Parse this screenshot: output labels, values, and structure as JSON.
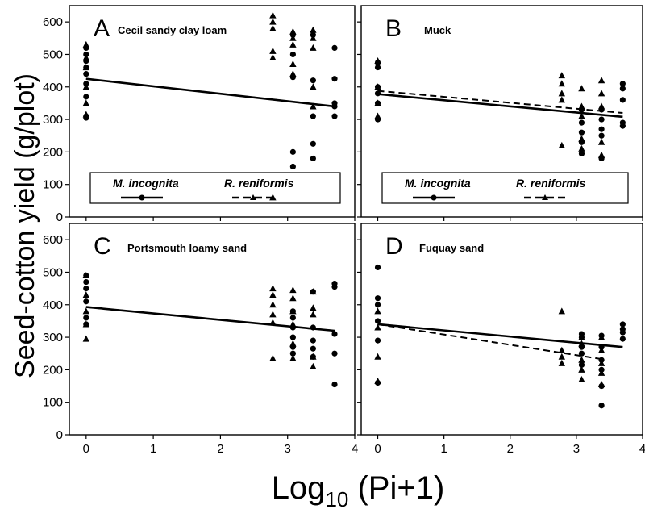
{
  "chart_data": {
    "type": "scatter",
    "ylabel": "Seed-cotton yield (g/plot)",
    "xlabel": {
      "main": "Log",
      "sub": "10",
      "rest": " (Pi+1)"
    },
    "xlim": [
      -0.25,
      4.0
    ],
    "ylim": [
      0,
      650
    ],
    "xticks": [
      0,
      1,
      2,
      3,
      4
    ],
    "yticks": [
      0,
      100,
      200,
      300,
      400,
      500,
      600
    ],
    "legend": {
      "placement": "inside-bottom",
      "entries": [
        {
          "name": "M. incognita",
          "marker": "circle",
          "line": "solid"
        },
        {
          "name": "R. reniformis",
          "marker": "triangle",
          "line": "dashed"
        }
      ]
    },
    "panels": [
      {
        "letter": "A",
        "title": "Cecil sandy clay loam",
        "legend": true,
        "lines": [
          {
            "series": "M. incognita",
            "style": "solid",
            "x": [
              0,
              3.7
            ],
            "y": [
              425,
              340
            ]
          },
          {
            "series": "R. reniformis",
            "style": "dashed",
            "x": [
              0,
              3.7
            ],
            "y": [
              425,
              340
            ]
          }
        ],
        "series": [
          {
            "name": "M. incognita",
            "marker": "circle",
            "x": [
              0,
              0,
              0,
              0,
              0,
              0,
              0,
              0,
              0,
              3.08,
              3.08,
              3.08,
              3.08,
              3.08,
              3.38,
              3.38,
              3.38,
              3.38,
              3.38,
              3.7,
              3.7,
              3.7,
              3.7,
              3.7
            ],
            "y": [
              310,
              370,
              410,
              440,
              460,
              480,
              500,
              520,
              305,
              560,
              500,
              430,
              200,
              155,
              560,
              420,
              310,
              225,
              180,
              520,
              425,
              350,
              340,
              310
            ]
          },
          {
            "name": "R. reniformis",
            "marker": "triangle",
            "x": [
              0,
              0,
              0,
              0,
              0,
              0,
              2.78,
              2.78,
              2.78,
              2.78,
              2.78,
              2.78,
              3.08,
              3.08,
              3.08,
              3.08,
              3.08,
              3.38,
              3.38,
              3.38,
              3.38,
              3.38
            ],
            "y": [
              315,
              350,
              400,
              460,
              490,
              530,
              620,
              600,
              580,
              510,
              490,
              60,
              570,
              550,
              530,
              470,
              440,
              575,
              550,
              520,
              400,
              340
            ]
          }
        ]
      },
      {
        "letter": "B",
        "title": "Muck",
        "legend": true,
        "lines": [
          {
            "series": "M. incognita",
            "style": "solid",
            "x": [
              0,
              3.7
            ],
            "y": [
              378,
              308
            ]
          },
          {
            "series": "R. reniformis",
            "style": "dashed",
            "x": [
              0,
              3.7
            ],
            "y": [
              388,
              320
            ]
          }
        ],
        "series": [
          {
            "name": "M. incognita",
            "marker": "circle",
            "x": [
              0,
              0,
              0,
              0,
              0,
              0,
              3.08,
              3.08,
              3.08,
              3.08,
              3.08,
              3.38,
              3.38,
              3.38,
              3.38,
              3.38,
              3.7,
              3.7,
              3.7,
              3.7,
              3.7
            ],
            "y": [
              300,
              350,
              380,
              400,
              460,
              475,
              330,
              290,
              260,
              230,
              195,
              330,
              300,
              270,
              250,
              180,
              410,
              395,
              360,
              290,
              280
            ]
          },
          {
            "name": "R. reniformis",
            "marker": "triangle",
            "x": [
              0,
              0,
              0,
              0,
              2.78,
              2.78,
              2.78,
              2.78,
              2.78,
              3.08,
              3.08,
              3.08,
              3.08,
              3.08,
              3.38,
              3.38,
              3.38,
              3.38,
              3.38
            ],
            "y": [
              310,
              350,
              400,
              480,
              435,
              410,
              380,
              360,
              220,
              395,
              340,
              310,
              240,
              210,
              420,
              380,
              340,
              230,
              190
            ]
          }
        ]
      },
      {
        "letter": "C",
        "title": "Portsmouth loamy sand",
        "legend": false,
        "lines": [
          {
            "series": "M. incognita",
            "style": "solid",
            "x": [
              0,
              3.7
            ],
            "y": [
              393,
              320
            ]
          },
          {
            "series": "R. reniformis",
            "style": "dashed",
            "x": [
              0,
              3.7
            ],
            "y": [
              393,
              320
            ]
          }
        ],
        "series": [
          {
            "name": "M. incognita",
            "marker": "circle",
            "x": [
              0,
              0,
              0,
              0,
              0,
              0,
              3.08,
              3.08,
              3.08,
              3.08,
              3.08,
              3.08,
              3.38,
              3.38,
              3.38,
              3.38,
              3.38,
              3.7,
              3.7,
              3.7,
              3.7,
              3.7
            ],
            "y": [
              340,
              360,
              410,
              450,
              470,
              490,
              380,
              360,
              330,
              300,
              270,
              250,
              440,
              330,
              290,
              265,
              240,
              465,
              455,
              310,
              250,
              155
            ]
          },
          {
            "name": "R. reniformis",
            "marker": "triangle",
            "x": [
              0,
              0,
              0,
              0,
              0,
              2.78,
              2.78,
              2.78,
              2.78,
              2.78,
              2.78,
              3.08,
              3.08,
              3.08,
              3.08,
              3.08,
              3.08,
              3.38,
              3.38,
              3.38,
              3.38,
              3.38
            ],
            "y": [
              295,
              340,
              380,
              430,
              490,
              450,
              430,
              400,
              370,
              345,
              235,
              445,
              420,
              380,
              340,
              280,
              235,
              440,
              390,
              370,
              240,
              210
            ]
          }
        ]
      },
      {
        "letter": "D",
        "title": "Fuquay sand",
        "legend": false,
        "lines": [
          {
            "series": "M. incognita",
            "style": "solid",
            "x": [
              0,
              3.7
            ],
            "y": [
              340,
              270
            ]
          },
          {
            "series": "R. reniformis",
            "style": "dashed",
            "x": [
              0,
              3.38
            ],
            "y": [
              340,
              233
            ]
          }
        ],
        "series": [
          {
            "name": "M. incognita",
            "marker": "circle",
            "x": [
              0,
              0,
              0,
              0,
              0,
              0,
              3.08,
              3.08,
              3.08,
              3.08,
              3.08,
              3.38,
              3.38,
              3.38,
              3.38,
              3.38,
              3.38,
              3.7,
              3.7,
              3.7,
              3.7
            ],
            "y": [
              160,
              290,
              350,
              400,
              420,
              515,
              310,
              300,
              270,
              250,
              215,
              305,
              270,
              230,
              200,
              150,
              90,
              340,
              325,
              315,
              295
            ]
          },
          {
            "name": "R. reniformis",
            "marker": "triangle",
            "x": [
              0,
              0,
              0,
              0,
              2.78,
              2.78,
              2.78,
              2.78,
              3.08,
              3.08,
              3.08,
              3.08,
              3.08,
              3.38,
              3.38,
              3.38,
              3.38,
              3.38
            ],
            "y": [
              165,
              240,
              330,
              380,
              380,
              260,
              240,
              220,
              300,
              280,
              230,
              200,
              170,
              300,
              260,
              220,
              190,
              155
            ]
          }
        ]
      }
    ]
  }
}
